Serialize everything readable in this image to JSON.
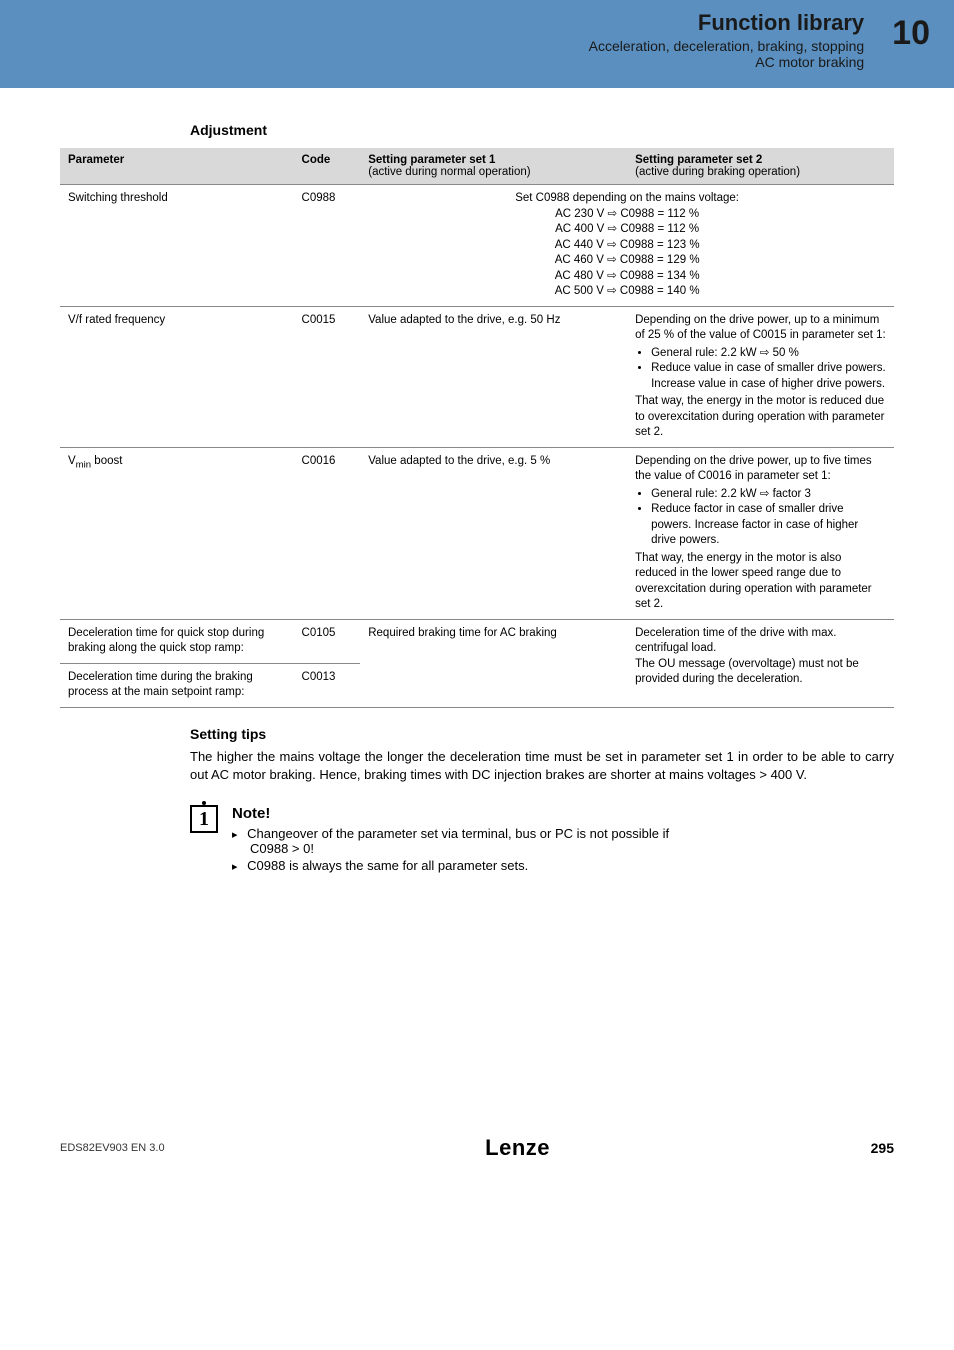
{
  "header": {
    "title": "Function library",
    "sub1": "Acceleration, deceleration, braking, stopping",
    "sub2": "AC motor braking",
    "chapter": "10",
    "band_color": "#5a8fbf"
  },
  "adjustment": {
    "heading": "Adjustment",
    "columns": {
      "param": "Parameter",
      "code": "Code",
      "s1": "Setting parameter set 1",
      "s1_sub": "(active during normal operation)",
      "s2": "Setting parameter set 2",
      "s2_sub": "(active during braking operation)"
    },
    "rows": {
      "r1": {
        "param": "Switching threshold",
        "code": "C0988",
        "merged_lines": [
          "Set C0988 depending on the mains voltage:",
          "AC 230 V ⇨ C0988 = 112 %",
          "AC 400 V ⇨ C0988 = 112 %",
          "AC 440 V ⇨ C0988 = 123 %",
          "AC 460 V ⇨ C0988 = 129 %",
          "AC 480 V ⇨ C0988 = 134 %",
          "AC 500 V ⇨ C0988 = 140 %"
        ]
      },
      "r2": {
        "param": "V/f rated frequency",
        "code": "C0015",
        "s1": "Value adapted to the drive, e.g. 50 Hz",
        "s2_pre": "Depending on the drive power, up to a minimum of 25 % of the value of C0015 in parameter set 1:",
        "s2_b1": "General rule: 2.2 kW ⇨ 50 %",
        "s2_b2": "Reduce value in case of smaller drive powers. Increase value in case of higher drive powers.",
        "s2_post": "That way, the energy in the motor is reduced due to overexcitation during operation with parameter set 2."
      },
      "r3": {
        "param_html": "V<sub>min</sub> boost",
        "code": "C0016",
        "s1": "Value adapted to the drive, e.g. 5 %",
        "s2_pre": "Depending on the drive power, up to five times the value of C0016 in parameter set 1:",
        "s2_b1": "General rule: 2.2 kW ⇨ factor 3",
        "s2_b2": "Reduce factor in case of smaller drive powers. Increase factor in case of higher drive powers.",
        "s2_post": "That way, the energy in the motor is also reduced in the lower speed range due to overexcitation during operation with parameter set 2."
      },
      "r4": {
        "param": "Deceleration time for quick stop during braking along the quick stop ramp:",
        "code": "C0105",
        "s1": "Required braking time for AC braking",
        "s2": "Deceleration time of the drive with max. centrifugal load.\nThe OU message (overvoltage) must not be provided during the deceleration."
      },
      "r5": {
        "param": "Deceleration time during the braking process at the main setpoint ramp:",
        "code": "C0013"
      }
    }
  },
  "setting_tips": {
    "heading": "Setting tips",
    "body": "The higher the mains voltage the longer the deceleration time must be set in parameter set 1 in order to be able to carry out AC motor braking. Hence, braking times with DC injection brakes are shorter at mains voltages > 400 V."
  },
  "note": {
    "title": "Note!",
    "items": [
      {
        "text": "Changeover of the parameter set via terminal, bus or PC is not possible if",
        "sub": "C0988 > 0!"
      },
      {
        "text": "C0988 is always the same for all parameter sets."
      }
    ]
  },
  "footer": {
    "left": "EDS82EV903 EN 3.0",
    "logo": "Lenze",
    "page": "295"
  }
}
